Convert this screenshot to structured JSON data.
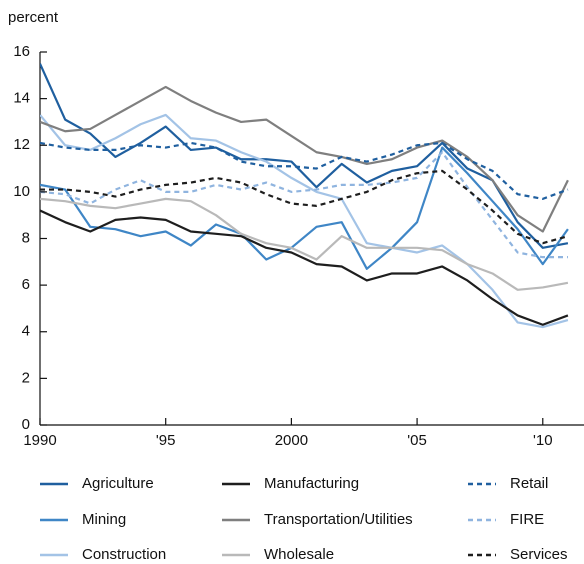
{
  "chart_data": {
    "type": "line",
    "y_label": "percent",
    "x": [
      1990,
      1991,
      1992,
      1993,
      1994,
      1995,
      1996,
      1997,
      1998,
      1999,
      2000,
      2001,
      2002,
      2003,
      2004,
      2005,
      2006,
      2007,
      2008,
      2009,
      2010,
      2011
    ],
    "xlim": [
      1990,
      2011.6
    ],
    "xticks": [
      1990,
      {
        "value": 1995,
        "label": "'95"
      },
      2000,
      {
        "value": 2005,
        "label": "'05"
      },
      {
        "value": 2010,
        "label": "'10"
      }
    ],
    "ylim": [
      0,
      16
    ],
    "yticks": [
      0,
      2,
      4,
      6,
      8,
      10,
      12,
      14,
      16
    ],
    "grid": false,
    "series": [
      {
        "name": "Agriculture",
        "color": "#1f5f9f",
        "dashed": false,
        "values": [
          15.5,
          13.1,
          12.5,
          11.5,
          12.1,
          12.8,
          11.8,
          11.9,
          11.4,
          11.4,
          11.3,
          10.2,
          11.2,
          10.4,
          10.9,
          11.1,
          12.1,
          11.0,
          10.5,
          8.7,
          7.6,
          7.8
        ]
      },
      {
        "name": "Mining",
        "color": "#3f86c6",
        "dashed": false,
        "values": [
          10.3,
          10.1,
          8.5,
          8.4,
          8.1,
          8.3,
          7.7,
          8.6,
          8.2,
          7.1,
          7.6,
          8.5,
          8.7,
          6.7,
          7.6,
          8.7,
          11.9,
          10.8,
          9.6,
          8.4,
          6.9,
          8.4
        ]
      },
      {
        "name": "Construction",
        "color": "#a3c3e6",
        "dashed": false,
        "values": [
          13.3,
          12.0,
          11.8,
          12.3,
          12.9,
          13.3,
          12.3,
          12.2,
          11.7,
          11.3,
          10.6,
          10.0,
          9.7,
          7.8,
          7.6,
          7.4,
          7.7,
          6.9,
          5.8,
          4.4,
          4.2,
          4.5
        ]
      },
      {
        "name": "Manufacturing",
        "color": "#1e1e1e",
        "dashed": false,
        "values": [
          9.2,
          8.7,
          8.3,
          8.8,
          8.9,
          8.8,
          8.3,
          8.2,
          8.1,
          7.6,
          7.4,
          6.9,
          6.8,
          6.2,
          6.5,
          6.5,
          6.8,
          6.2,
          5.4,
          4.7,
          4.3,
          4.7
        ]
      },
      {
        "name": "Transportation/Utilities",
        "color": "#7f7f7f",
        "dashed": false,
        "values": [
          13.0,
          12.6,
          12.7,
          13.3,
          13.9,
          14.5,
          13.9,
          13.4,
          13.0,
          13.1,
          12.4,
          11.7,
          11.5,
          11.2,
          11.4,
          11.9,
          12.2,
          11.5,
          10.5,
          9.0,
          8.3,
          10.5
        ]
      },
      {
        "name": "Wholesale",
        "color": "#b9b9b9",
        "dashed": false,
        "values": [
          9.7,
          9.6,
          9.4,
          9.3,
          9.5,
          9.7,
          9.6,
          9.0,
          8.2,
          7.8,
          7.6,
          7.1,
          8.1,
          7.6,
          7.6,
          7.6,
          7.5,
          6.9,
          6.5,
          5.8,
          5.9,
          6.1
        ]
      },
      {
        "name": "Retail",
        "color": "#1f5f9f",
        "dashed": true,
        "values": [
          12.1,
          11.9,
          11.8,
          11.8,
          12.0,
          11.9,
          12.1,
          11.9,
          11.3,
          11.1,
          11.1,
          11.0,
          11.5,
          11.3,
          11.6,
          12.0,
          12.1,
          11.4,
          10.9,
          9.9,
          9.7,
          10.1
        ]
      },
      {
        "name": "FIRE",
        "color": "#8fb4df",
        "dashed": true,
        "values": [
          10.0,
          9.9,
          9.5,
          10.1,
          10.5,
          10.0,
          10.0,
          10.3,
          10.1,
          10.4,
          10.0,
          10.1,
          10.3,
          10.3,
          10.4,
          10.6,
          11.7,
          10.2,
          8.8,
          7.4,
          7.2,
          7.2
        ]
      },
      {
        "name": "Services",
        "color": "#1e1e1e",
        "dashed": true,
        "values": [
          10.1,
          10.1,
          10.0,
          9.8,
          10.1,
          10.3,
          10.4,
          10.6,
          10.4,
          9.9,
          9.5,
          9.4,
          9.7,
          10.0,
          10.5,
          10.8,
          10.9,
          10.1,
          9.2,
          8.2,
          7.8,
          8.1
        ]
      }
    ]
  }
}
